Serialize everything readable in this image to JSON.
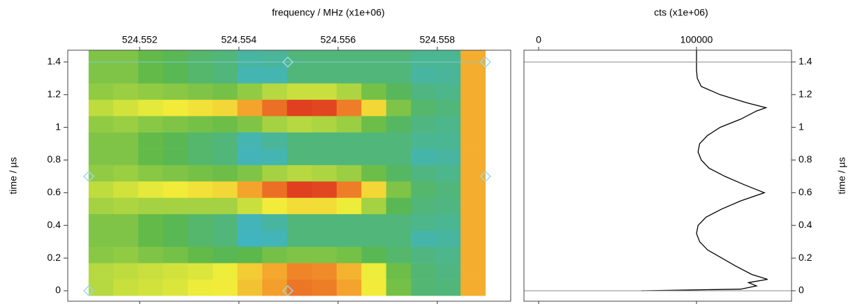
{
  "chart_data": [
    {
      "type": "heatmap",
      "xlabel": "frequency / MHz (x1e+06)",
      "ylabel": "time / µs",
      "xlim": [
        524.55055,
        524.55948
      ],
      "ylim": [
        -0.064,
        1.472
      ],
      "xticks": [
        524.552,
        524.554,
        524.556,
        524.558
      ],
      "yticks": [
        0,
        0.2,
        0.4,
        0.6,
        0.8,
        1,
        1.2,
        1.4
      ],
      "xbins": [
        524.55097,
        524.55147,
        524.55197,
        524.55247,
        524.55297,
        524.55347,
        524.55397,
        524.55447,
        524.55497,
        524.55547,
        524.55597,
        524.55647,
        524.55697,
        524.55747,
        524.55797,
        524.55847,
        524.55897
      ],
      "ybins": [
        -0.03,
        0.07,
        0.17,
        0.27,
        0.37,
        0.47,
        0.57,
        0.67,
        0.77,
        0.87,
        0.97,
        1.07,
        1.17,
        1.27,
        1.37,
        1.47
      ],
      "zlim": [
        0.35,
        1
      ],
      "colorscale": [
        "#3fb4c8",
        "#5cb84a",
        "#f2ee3a",
        "#f49a2a",
        "#dc2a1e"
      ],
      "z": [
        [
          0.61,
          0.63,
          0.64,
          0.65,
          0.67,
          0.68,
          0.76,
          0.83,
          0.89,
          0.88,
          0.82,
          0.68,
          0.54,
          0.46,
          0.45,
          0.8
        ],
        [
          0.61,
          0.62,
          0.63,
          0.64,
          0.65,
          0.67,
          0.74,
          0.81,
          0.87,
          0.86,
          0.79,
          0.67,
          0.53,
          0.46,
          0.44,
          0.8
        ],
        [
          0.56,
          0.57,
          0.55,
          0.54,
          0.52,
          0.5,
          0.51,
          0.54,
          0.55,
          0.55,
          0.54,
          0.5,
          0.47,
          0.44,
          0.43,
          0.8
        ],
        [
          0.55,
          0.55,
          0.52,
          0.5,
          0.47,
          0.45,
          0.36,
          0.37,
          0.45,
          0.45,
          0.45,
          0.45,
          0.45,
          0.39,
          0.4,
          0.8
        ],
        [
          0.55,
          0.55,
          0.52,
          0.5,
          0.47,
          0.45,
          0.37,
          0.4,
          0.45,
          0.45,
          0.45,
          0.45,
          0.45,
          0.43,
          0.42,
          0.8
        ],
        [
          0.59,
          0.6,
          0.59,
          0.59,
          0.59,
          0.59,
          0.63,
          0.68,
          0.71,
          0.71,
          0.67,
          0.59,
          0.5,
          0.45,
          0.44,
          0.8
        ],
        [
          0.62,
          0.64,
          0.66,
          0.68,
          0.7,
          0.72,
          0.82,
          0.9,
          0.97,
          0.96,
          0.88,
          0.72,
          0.55,
          0.47,
          0.45,
          0.8
        ],
        [
          0.57,
          0.58,
          0.56,
          0.55,
          0.54,
          0.53,
          0.55,
          0.59,
          0.61,
          0.6,
          0.58,
          0.53,
          0.48,
          0.44,
          0.43,
          0.8
        ],
        [
          0.55,
          0.55,
          0.52,
          0.5,
          0.47,
          0.45,
          0.37,
          0.38,
          0.45,
          0.45,
          0.45,
          0.45,
          0.45,
          0.39,
          0.4,
          0.8
        ],
        [
          0.55,
          0.55,
          0.52,
          0.5,
          0.47,
          0.45,
          0.38,
          0.41,
          0.45,
          0.45,
          0.45,
          0.45,
          0.45,
          0.42,
          0.42,
          0.8
        ],
        [
          0.57,
          0.58,
          0.56,
          0.55,
          0.54,
          0.53,
          0.55,
          0.59,
          0.61,
          0.6,
          0.58,
          0.53,
          0.48,
          0.44,
          0.43,
          0.8
        ],
        [
          0.62,
          0.64,
          0.66,
          0.68,
          0.7,
          0.72,
          0.82,
          0.9,
          0.97,
          0.96,
          0.88,
          0.72,
          0.55,
          0.47,
          0.45,
          0.8
        ],
        [
          0.57,
          0.58,
          0.57,
          0.56,
          0.55,
          0.54,
          0.57,
          0.61,
          0.63,
          0.63,
          0.6,
          0.54,
          0.49,
          0.44,
          0.43,
          0.8
        ],
        [
          0.55,
          0.55,
          0.52,
          0.5,
          0.47,
          0.45,
          0.38,
          0.38,
          0.45,
          0.45,
          0.45,
          0.45,
          0.45,
          0.4,
          0.41,
          0.8
        ],
        [
          0.55,
          0.55,
          0.52,
          0.5,
          0.47,
          0.45,
          0.4,
          0.41,
          0.45,
          0.45,
          0.45,
          0.45,
          0.45,
          0.42,
          0.42,
          0.8
        ]
      ]
    },
    {
      "type": "line",
      "xlabel": "cts (x1e+06)",
      "ylabel": "time / µs",
      "xlim": [
        -9300,
        160200
      ],
      "ylim": [
        -0.064,
        1.472
      ],
      "xticks": [
        0,
        100000
      ],
      "yticks": [
        0,
        0.2,
        0.4,
        0.6,
        0.8,
        1,
        1.2,
        1.4
      ],
      "color": "#000000",
      "time": [
        0,
        0.01,
        0.03,
        0.05,
        0.07,
        0.1,
        0.15,
        0.2,
        0.25,
        0.3,
        0.35,
        0.4,
        0.45,
        0.5,
        0.55,
        0.6,
        0.65,
        0.7,
        0.75,
        0.8,
        0.85,
        0.9,
        0.95,
        1.0,
        1.05,
        1.1,
        1.12,
        1.15,
        1.2,
        1.25,
        1.3,
        1.35,
        1.4,
        1.47
      ],
      "values": [
        65000,
        128000,
        138000,
        133000,
        145000,
        135000,
        125000,
        116000,
        107000,
        102000,
        100000,
        101000,
        106000,
        116000,
        128000,
        143000,
        130000,
        118000,
        108000,
        103000,
        101000,
        102000,
        107000,
        115000,
        128000,
        138000,
        144000,
        132000,
        115000,
        103000,
        100500,
        100000,
        100000,
        100000
      ]
    }
  ]
}
